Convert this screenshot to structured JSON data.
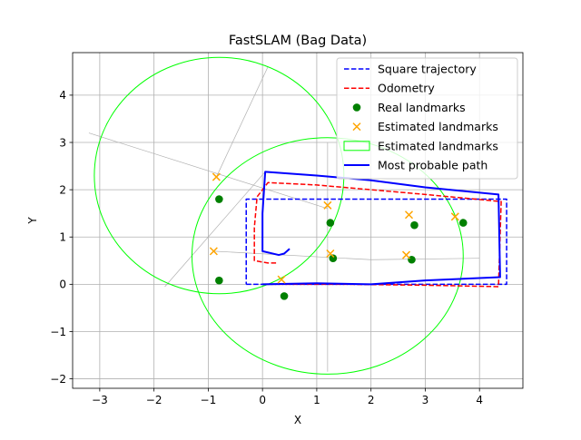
{
  "chart_data": {
    "type": "scatter",
    "title": "FastSLAM (Bag Data)",
    "xlabel": "X",
    "ylabel": "Y",
    "xlim": [
      -3.5,
      4.8
    ],
    "ylim": [
      -2.2,
      4.9
    ],
    "xticks": [
      -3,
      -2,
      -1,
      0,
      1,
      2,
      3,
      4
    ],
    "yticks": [
      -2,
      -1,
      0,
      1,
      2,
      3,
      4
    ],
    "xtick_labels": [
      "−3",
      "−2",
      "−1",
      "0",
      "1",
      "2",
      "3",
      "4"
    ],
    "ytick_labels": [
      "−2",
      "−1",
      "0",
      "1",
      "2",
      "3",
      "4"
    ],
    "grid": true,
    "legend_position": "top-right",
    "colors": {
      "square": "#0000ff",
      "odometry": "#ff0000",
      "real": "#008000",
      "estimated": "#ffa500",
      "ellipse": "#00ff00",
      "path": "#0000ff",
      "rays": "#b0b0b0"
    },
    "series": [
      {
        "name": "Square trajectory",
        "kind": "line",
        "style": "dashed",
        "points": [
          [
            -0.3,
            0.0
          ],
          [
            4.5,
            0.0
          ],
          [
            4.5,
            1.8
          ],
          [
            -0.3,
            1.8
          ],
          [
            -0.3,
            0.0
          ]
        ]
      },
      {
        "name": "Odometry",
        "kind": "line",
        "style": "dashed",
        "points": [
          [
            0.25,
            0.45
          ],
          [
            0.1,
            0.45
          ],
          [
            -0.15,
            0.5
          ],
          [
            -0.15,
            1.2
          ],
          [
            -0.1,
            1.85
          ],
          [
            0.1,
            2.15
          ],
          [
            1.0,
            2.1
          ],
          [
            2.0,
            2.0
          ],
          [
            3.0,
            1.9
          ],
          [
            4.4,
            1.75
          ],
          [
            4.35,
            -0.05
          ],
          [
            3.0,
            -0.02
          ],
          [
            1.5,
            0.0
          ],
          [
            0.0,
            0.0
          ]
        ]
      },
      {
        "name": "Real landmarks",
        "kind": "scatter",
        "marker": "circle",
        "points": [
          [
            -0.8,
            1.8
          ],
          [
            -0.8,
            0.08
          ],
          [
            0.4,
            -0.25
          ],
          [
            1.25,
            1.3
          ],
          [
            1.3,
            0.55
          ],
          [
            2.8,
            1.25
          ],
          [
            2.75,
            0.52
          ],
          [
            3.7,
            1.3
          ]
        ]
      },
      {
        "name": "Estimated landmarks",
        "kind": "scatter",
        "marker": "x",
        "points": [
          [
            -0.85,
            2.27
          ],
          [
            -0.9,
            0.7
          ],
          [
            0.35,
            0.1
          ],
          [
            1.2,
            1.67
          ],
          [
            1.25,
            0.65
          ],
          [
            2.7,
            1.47
          ],
          [
            2.65,
            0.62
          ],
          [
            3.55,
            1.43
          ]
        ]
      },
      {
        "name": "Estimated landmarks",
        "kind": "ellipse",
        "ellipses": [
          {
            "cx": -0.8,
            "cy": 2.3,
            "rx": 2.3,
            "ry": 2.5
          },
          {
            "cx": 1.2,
            "cy": 0.6,
            "rx": 2.5,
            "ry": 2.5
          }
        ]
      },
      {
        "name": "Most probable path",
        "kind": "line",
        "style": "solid",
        "points": [
          [
            0.5,
            0.75
          ],
          [
            0.4,
            0.65
          ],
          [
            0.3,
            0.62
          ],
          [
            0.0,
            0.7
          ],
          [
            0.0,
            1.5
          ],
          [
            0.05,
            2.38
          ],
          [
            1.0,
            2.3
          ],
          [
            2.0,
            2.2
          ],
          [
            3.0,
            2.05
          ],
          [
            4.35,
            1.9
          ],
          [
            4.38,
            0.15
          ],
          [
            3.0,
            0.08
          ],
          [
            2.0,
            0.0
          ],
          [
            1.0,
            0.02
          ],
          [
            0.0,
            0.0
          ]
        ]
      }
    ],
    "rays": [
      [
        [
          -3.2,
          3.2
        ],
        [
          1.2,
          1.6
        ]
      ],
      [
        [
          0.05,
          2.38
        ],
        [
          -1.8,
          -0.05
        ]
      ],
      [
        [
          -0.9,
          0.7
        ],
        [
          2.0,
          0.52
        ]
      ],
      [
        [
          2.0,
          0.52
        ],
        [
          4.0,
          0.55
        ]
      ],
      [
        [
          1.2,
          3.0
        ],
        [
          1.2,
          -1.85
        ]
      ],
      [
        [
          -0.85,
          2.27
        ],
        [
          0.1,
          4.6
        ]
      ]
    ]
  }
}
